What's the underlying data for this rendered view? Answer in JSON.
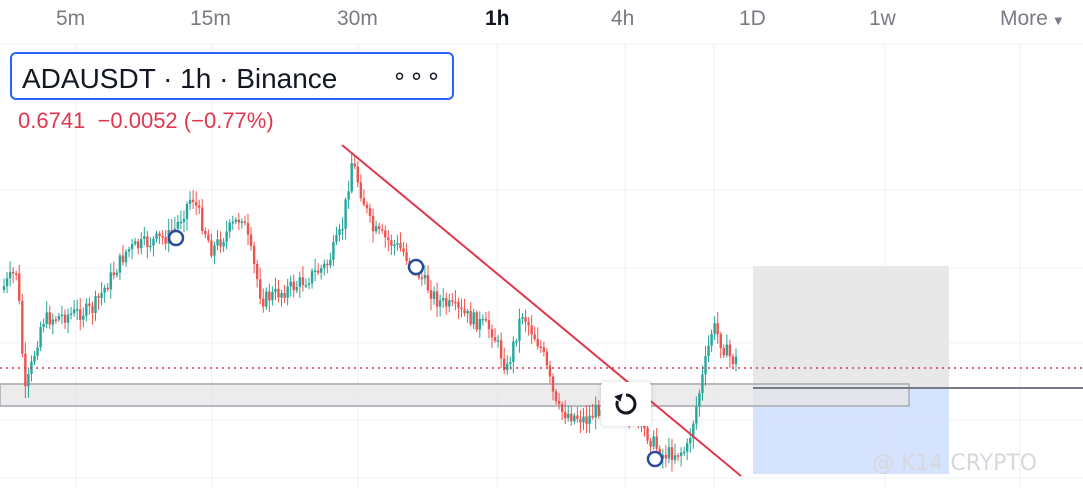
{
  "timeframes": [
    {
      "label": "5m",
      "active": false
    },
    {
      "label": "15m",
      "active": false
    },
    {
      "label": "30m",
      "active": false
    },
    {
      "label": "1h",
      "active": true
    },
    {
      "label": "4h",
      "active": false
    },
    {
      "label": "1D",
      "active": false
    },
    {
      "label": "1w",
      "active": false
    },
    {
      "label": "More",
      "active": false
    }
  ],
  "legend": {
    "title": "ADAUSDT · 1h · Binance",
    "menu_glyph": "∘∘∘",
    "price": "0.6741",
    "change": "−0.0052 (−0.77%)"
  },
  "watermark": "@ K14 CRYPTO",
  "colors": {
    "up": "#26a69a",
    "down": "#ef5350",
    "trendline": "#e0374f",
    "accent": "#2962ff",
    "zone": "#e6e6e6",
    "target_zone": "#d2e0ff"
  },
  "chart_data": {
    "type": "candlestick",
    "symbol": "ADAUSDT",
    "interval": "1h",
    "exchange": "Binance",
    "last_price": 0.6741,
    "change": -0.0052,
    "change_pct": -0.77,
    "grid": true,
    "annotations": [
      {
        "kind": "trendline",
        "direction": "descending"
      },
      {
        "kind": "support-zone",
        "shape": "rectangle"
      },
      {
        "kind": "long-position",
        "shape": "profit/stop rectangles"
      },
      {
        "kind": "circle-markers",
        "count": 3
      }
    ]
  }
}
